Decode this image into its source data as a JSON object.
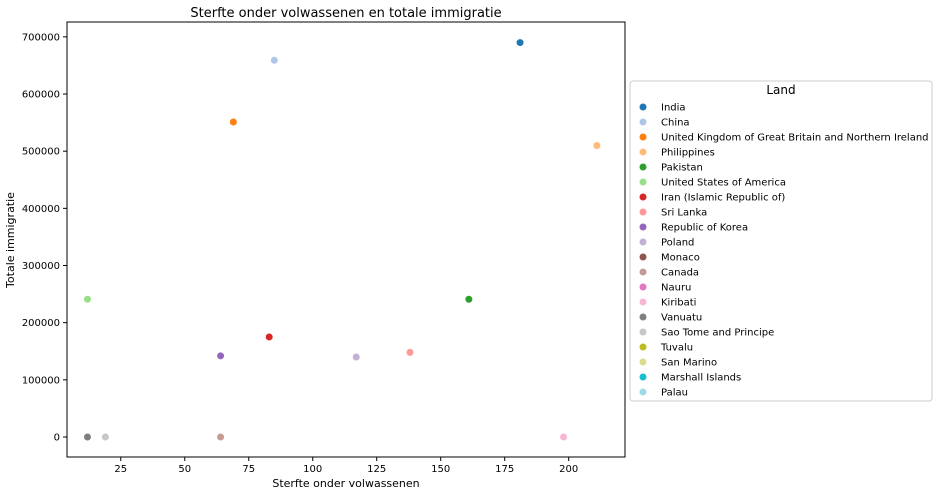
{
  "chart_data": {
    "type": "scatter",
    "title": "Sterfte onder volwassenen en totale immigratie",
    "xlabel": "Sterfte onder volwassenen",
    "ylabel": "Totale immigratie",
    "xlim": [
      4,
      222
    ],
    "ylim": [
      -35000,
      726000
    ],
    "xticks": [
      25,
      50,
      75,
      100,
      125,
      150,
      175,
      200
    ],
    "yticks": [
      0,
      100000,
      200000,
      300000,
      400000,
      500000,
      600000,
      700000
    ],
    "legend_title": "Land",
    "legend_position": "right",
    "grid": false,
    "series": [
      {
        "name": "India",
        "color": "#1f77b4",
        "x": 181,
        "y": 690000
      },
      {
        "name": "China",
        "color": "#aec7e8",
        "x": 85,
        "y": 659000
      },
      {
        "name": "United Kingdom of Great Britain and Northern Ireland",
        "color": "#ff7f0e",
        "x": 69,
        "y": 551000
      },
      {
        "name": "Philippines",
        "color": "#ffbb78",
        "x": 211,
        "y": 510000
      },
      {
        "name": "Pakistan",
        "color": "#2ca02c",
        "x": 161,
        "y": 241000
      },
      {
        "name": "United States of America",
        "color": "#98df8a",
        "x": 12,
        "y": 241000
      },
      {
        "name": "Iran (Islamic Republic of)",
        "color": "#d62728",
        "x": 83,
        "y": 175000
      },
      {
        "name": "Sri Lanka",
        "color": "#ff9896",
        "x": 138,
        "y": 148000
      },
      {
        "name": "Republic of Korea",
        "color": "#9467bd",
        "x": 64,
        "y": 142000
      },
      {
        "name": "Poland",
        "color": "#c5b0d5",
        "x": 117,
        "y": 140000
      },
      {
        "name": "Monaco",
        "color": "#8c564b",
        "x": null,
        "y": null
      },
      {
        "name": "Canada",
        "color": "#c49c94",
        "x": 64,
        "y": 0
      },
      {
        "name": "Nauru",
        "color": "#e377c2",
        "x": null,
        "y": null
      },
      {
        "name": "Kiribati",
        "color": "#f7b6d2",
        "x": 198,
        "y": 0
      },
      {
        "name": "Vanuatu",
        "color": "#7f7f7f",
        "x": 12,
        "y": 0
      },
      {
        "name": "Sao Tome and Principe",
        "color": "#c7c7c7",
        "x": 19,
        "y": 0
      },
      {
        "name": "Tuvalu",
        "color": "#bcbd22",
        "x": null,
        "y": null
      },
      {
        "name": "San Marino",
        "color": "#dbdb8d",
        "x": null,
        "y": null
      },
      {
        "name": "Marshall Islands",
        "color": "#17becf",
        "x": null,
        "y": null
      },
      {
        "name": "Palau",
        "color": "#9edae5",
        "x": null,
        "y": null
      }
    ]
  }
}
